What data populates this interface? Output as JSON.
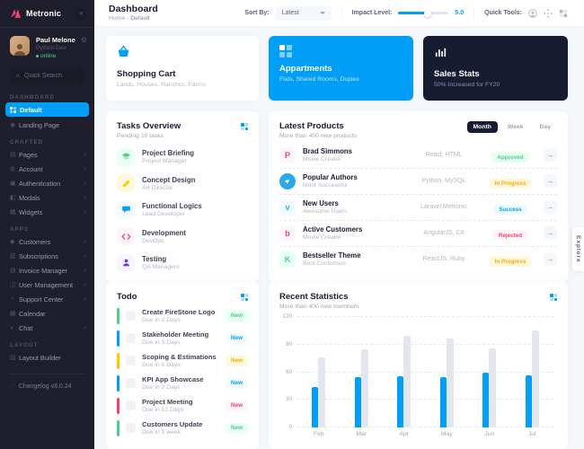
{
  "brand": {
    "name": "Metronic"
  },
  "icons": {
    "toggle": "«",
    "gear": "⚙",
    "chevron": "›",
    "arrow_right": "→",
    "landing": "◉",
    "pages": "▤",
    "account": "◍",
    "authentication": "▣",
    "modals": "◧",
    "widgets": "▦",
    "customers": "◆",
    "subscriptions": "▥",
    "invoice": "▤",
    "user_management": "◫",
    "support": "◔",
    "calendar": "▦",
    "chat": "◗",
    "layout_builder": "▧",
    "changelog": "◌"
  },
  "sidebar": {
    "user": {
      "name": "Paul Melone",
      "role": "Python Dev",
      "status": "online"
    },
    "search": {
      "placeholder": "Quick Search"
    },
    "sections": [
      {
        "label": "DASHBOARD",
        "items": [
          {
            "label": "Default"
          },
          {
            "label": "Landing Page"
          }
        ]
      },
      {
        "label": "CRAFTED",
        "items": [
          {
            "label": "Pages"
          },
          {
            "label": "Account"
          },
          {
            "label": "Authentication"
          },
          {
            "label": "Modals"
          },
          {
            "label": "Widgets"
          }
        ]
      },
      {
        "label": "APPS",
        "items": [
          {
            "label": "Customers"
          },
          {
            "label": "Subscriptions"
          },
          {
            "label": "Invoice Manager"
          },
          {
            "label": "User Management"
          },
          {
            "label": "Support Center"
          },
          {
            "label": "Calendar"
          },
          {
            "label": "Chat"
          }
        ]
      },
      {
        "label": "LAYOUT",
        "items": [
          {
            "label": "Layout Builder"
          }
        ]
      }
    ],
    "changelog": "Changelog v8.0.24"
  },
  "header": {
    "title": "Dashboard",
    "breadcrumb": {
      "home": "Home",
      "sep": "-",
      "current": "Default"
    },
    "sort": {
      "label": "Sort By:",
      "value": "Latest"
    },
    "impact": {
      "label": "Impact Level:",
      "value": "5.0"
    },
    "tools": {
      "label": "Quick Tools:"
    }
  },
  "minicards": [
    {
      "title": "Shopping Cart",
      "subtitle": "Lands, Houses, Ranchos, Farms"
    },
    {
      "title": "Appartments",
      "subtitle": "Flats, Shared Rooms, Duplex"
    },
    {
      "title": "Sales Stats",
      "subtitle": "50% Increased for FY20"
    }
  ],
  "tasks": {
    "title": "Tasks Overview",
    "subtitle": "Pending 10 tasks",
    "items": [
      {
        "title": "Project Briefing",
        "role": "Project Manager",
        "color": "#50cd89",
        "bg": "#e8fff3"
      },
      {
        "title": "Concept Design",
        "role": "Art Director",
        "color": "#ffc700",
        "bg": "#fff8dd"
      },
      {
        "title": "Functional Logics",
        "role": "Lead Developer",
        "color": "#009ef7",
        "bg": "#f1faff"
      },
      {
        "title": "Development",
        "role": "DevOps",
        "color": "#f1416c",
        "bg": "#fff5f8"
      },
      {
        "title": "Testing",
        "role": "QA Managers",
        "color": "#7239ea",
        "bg": "#f8f5ff"
      }
    ]
  },
  "products": {
    "title": "Latest Products",
    "subtitle": "More than 400 new products",
    "tabs": [
      "Month",
      "Week",
      "Day"
    ],
    "active_tab": "Month",
    "rows": [
      {
        "name": "Brad Simmons",
        "role": "Movie Creator",
        "tech": "React, HTML",
        "status": "Approved",
        "status_color": "#50cd89",
        "status_bg": "#e8fff3",
        "brand_glyph": "P",
        "brand_color": "#f1416c",
        "brand_bg": "#fff5f8"
      },
      {
        "name": "Popular Authors",
        "role": "Most Successful",
        "tech": "Python, MySQL",
        "status": "In Progress",
        "status_color": "#ffa800",
        "status_bg": "#fff8dd",
        "brand_glyph": "▶",
        "brand_color": "#ffffff",
        "brand_bg": "#29a9eb"
      },
      {
        "name": "New Users",
        "role": "Awesome Users",
        "tech": "Laravel,Metronic",
        "status": "Success",
        "status_color": "#009ef7",
        "status_bg": "#f1faff",
        "brand_glyph": "v",
        "brand_color": "#1ab7ea",
        "brand_bg": "#f1faff"
      },
      {
        "name": "Active Customers",
        "role": "Movie Creator",
        "tech": "AngularJS, C#",
        "status": "Rejected",
        "status_color": "#f1416c",
        "status_bg": "#fff5f8",
        "brand_glyph": "b",
        "brand_color": "#f1416c",
        "brand_bg": "#fff5f8"
      },
      {
        "name": "Bestseller Theme",
        "role": "Best Customers",
        "tech": "ReactJS, Ruby",
        "status": "In Progress",
        "status_color": "#ffa800",
        "status_bg": "#fff8dd",
        "brand_glyph": "K",
        "brand_color": "#50cd89",
        "brand_bg": "#e8fff3"
      }
    ]
  },
  "todo": {
    "title": "Todo",
    "items": [
      {
        "title": "Create FireStone Logo",
        "due": "Due in 2 Days",
        "badge": "New",
        "color": "#50cd89",
        "badge_color": "#50cd89",
        "badge_bg": "#e8fff3"
      },
      {
        "title": "Stakeholder Meeting",
        "due": "Due in 3 Days",
        "badge": "New",
        "color": "#009ef7",
        "badge_color": "#009ef7",
        "badge_bg": "#f1faff"
      },
      {
        "title": "Scoping & Estimations",
        "due": "Due in 5 Days",
        "badge": "New",
        "color": "#ffc700",
        "badge_color": "#ffa800",
        "badge_bg": "#fff8dd"
      },
      {
        "title": "KPI App Showcase",
        "due": "Due in 2 Days",
        "badge": "New",
        "color": "#009ef7",
        "badge_color": "#009ef7",
        "badge_bg": "#f1faff"
      },
      {
        "title": "Project Meeting",
        "due": "Due in 12 Days",
        "badge": "New",
        "color": "#f1416c",
        "badge_color": "#f1416c",
        "badge_bg": "#fff5f8"
      },
      {
        "title": "Customers Update",
        "due": "Due in 1 week",
        "badge": "New",
        "color": "#50cd89",
        "badge_color": "#50cd89",
        "badge_bg": "#e8fff3"
      }
    ]
  },
  "stats": {
    "title": "Recent Statistics",
    "subtitle": "More than 400 new members"
  },
  "explore": "Explore",
  "chart_data": {
    "type": "bar",
    "categories": [
      "Feb",
      "Mar",
      "Apr",
      "May",
      "Jun",
      "Jul"
    ],
    "series": [
      {
        "name": "blue-bars",
        "color": "#009ef7",
        "values": [
          44,
          55,
          56,
          55,
          60,
          57
        ]
      },
      {
        "name": "gray-bars",
        "color": "#e4e6ef",
        "values": [
          76,
          85,
          100,
          97,
          86,
          105
        ]
      }
    ],
    "title": "Recent Statistics",
    "xlabel": "",
    "ylabel": "",
    "ylim": [
      0,
      120
    ],
    "yticks": [
      0,
      30,
      60,
      90,
      120
    ],
    "grid": "horizontal-dashed",
    "legend": "none"
  }
}
